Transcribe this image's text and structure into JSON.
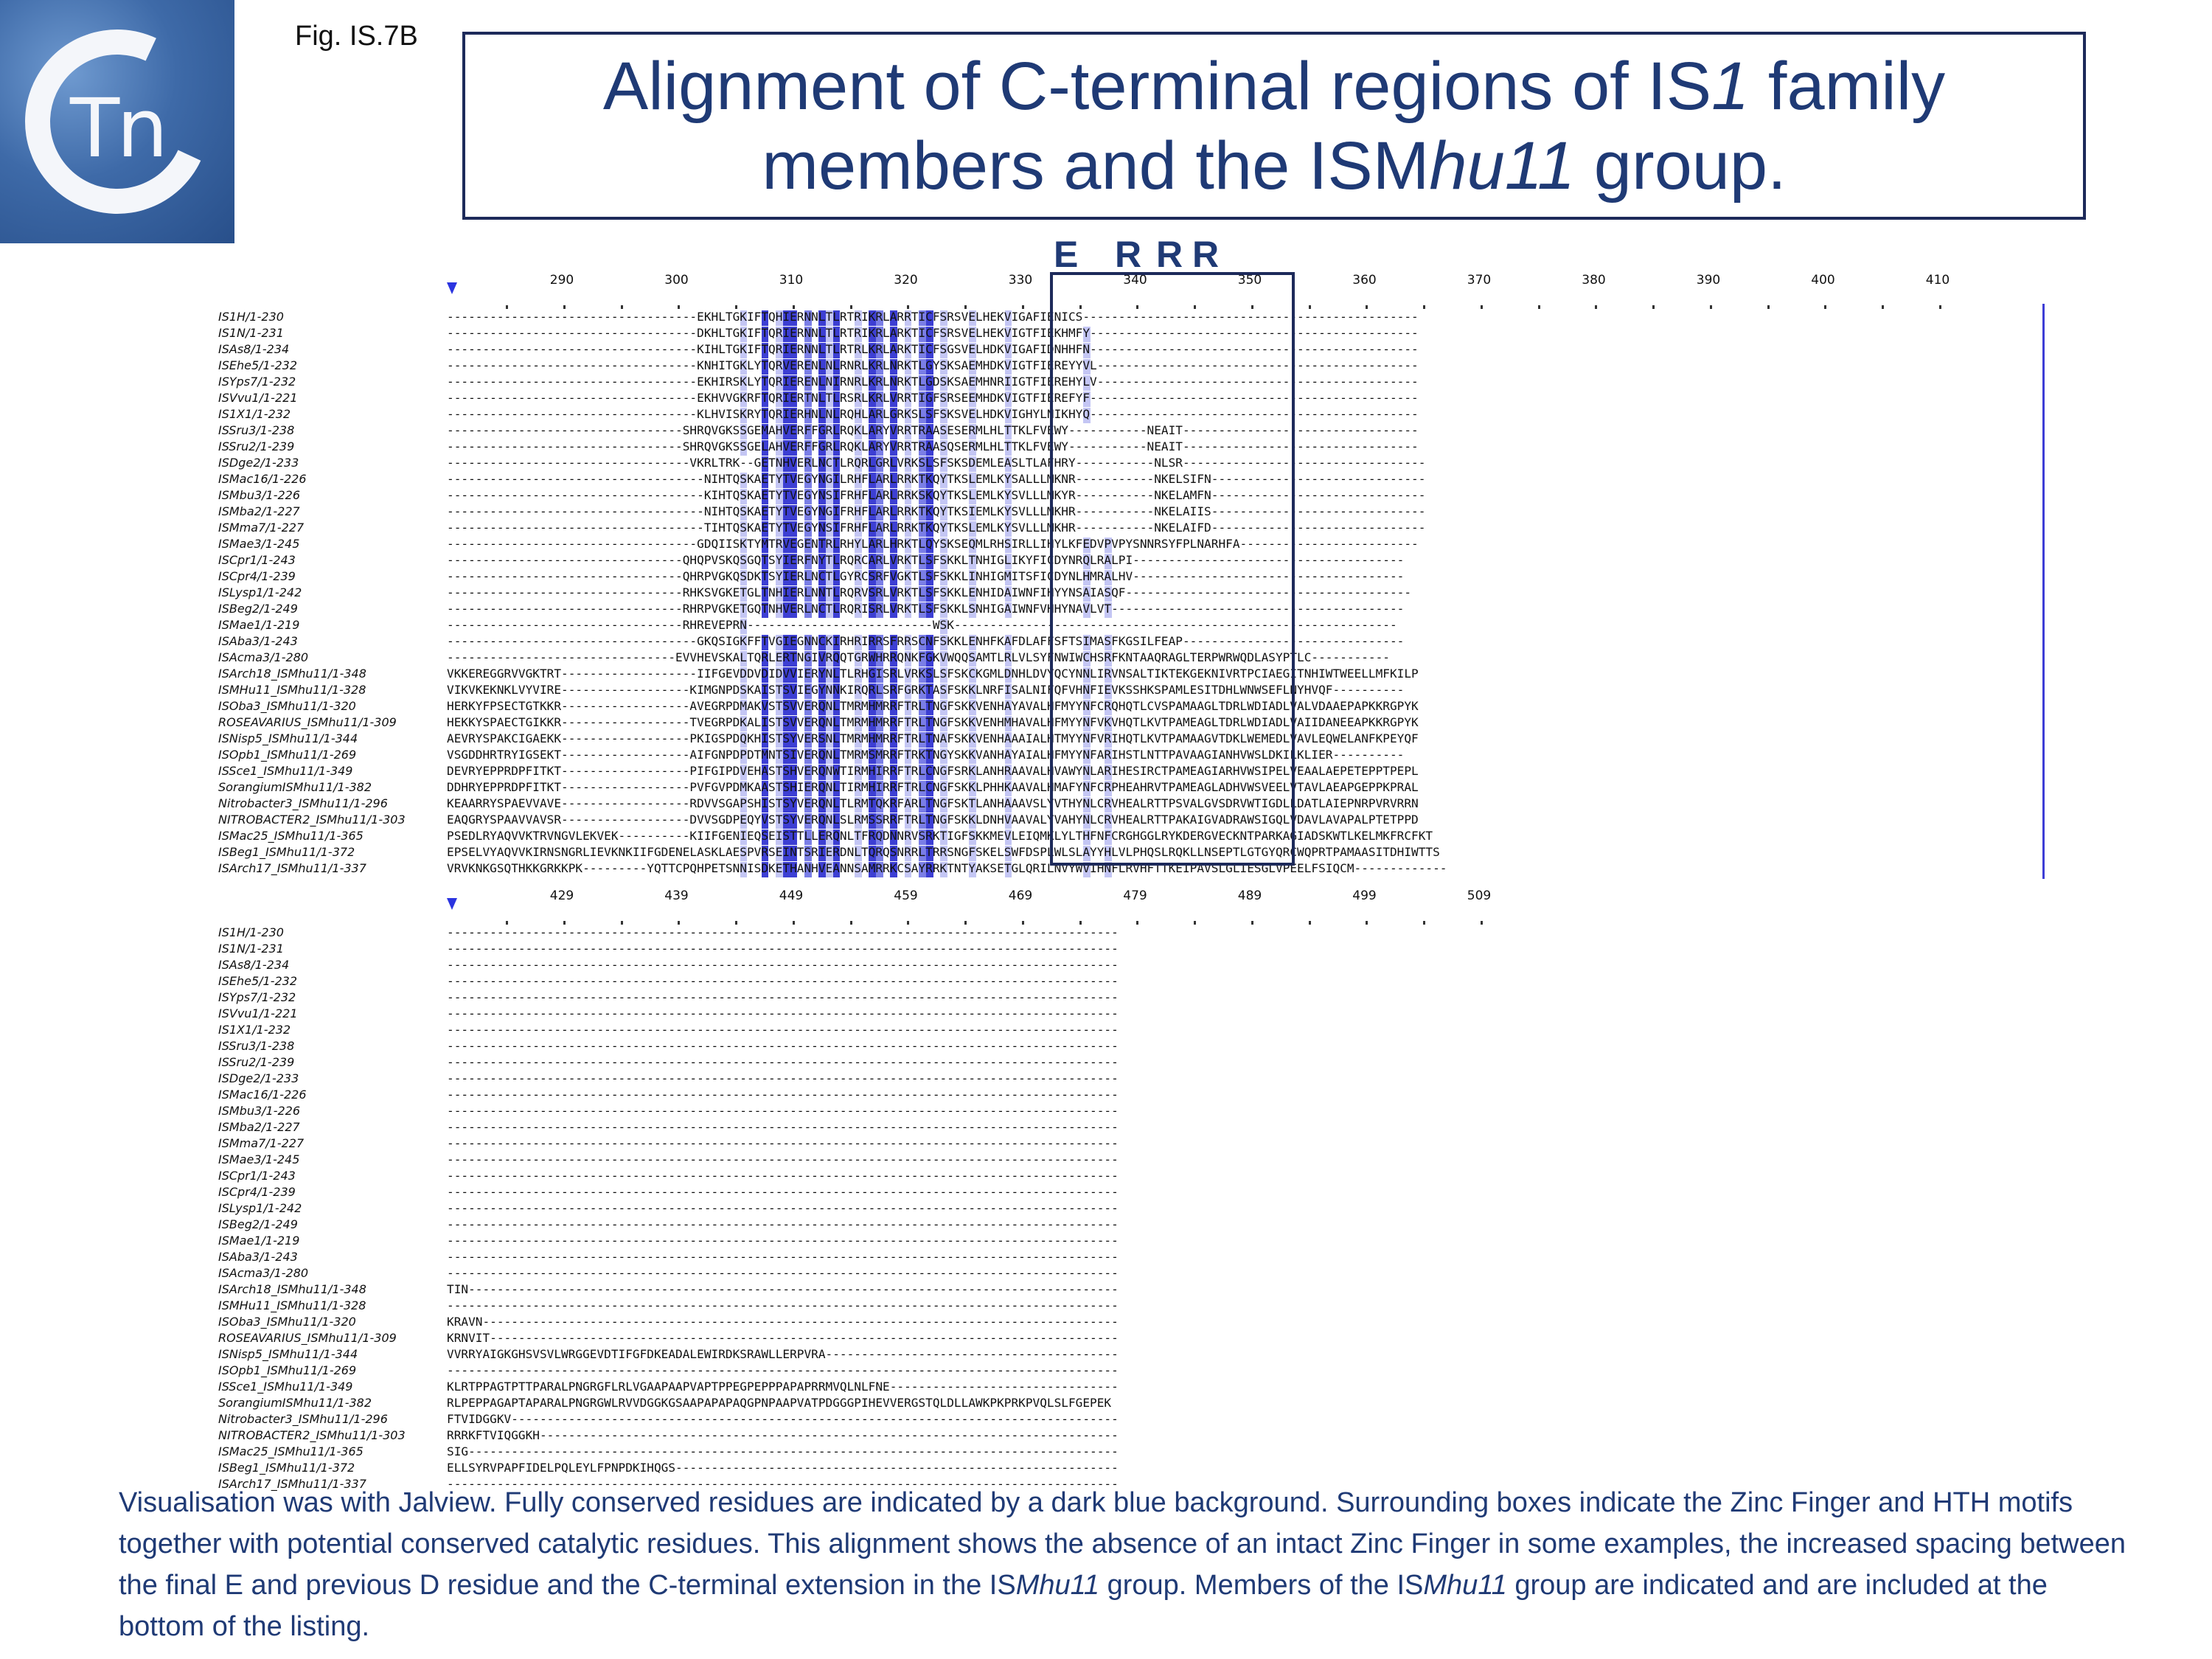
{
  "figure_label": "Fig. IS.7B",
  "logo": {
    "text": "Tn",
    "icon": "ctn-logo-icon"
  },
  "title": {
    "line1_a": "Alignment of C-terminal regions of IS",
    "line1_italic": "1",
    "line1_b": " family",
    "line2_a": "members and the ISM",
    "line2_italic": "hu11",
    "line2_b": " group."
  },
  "motif_labels": [
    "E",
    "R",
    "R",
    "R"
  ],
  "block1": {
    "ruler": [
      "290",
      "300",
      "310",
      "320",
      "330",
      "340",
      "350",
      "360",
      "370",
      "380",
      "390",
      "400",
      "410"
    ],
    "names": [
      "IS1H/1-230",
      "IS1N/1-231",
      "ISAs8/1-234",
      "ISEhe5/1-232",
      "ISYps7/1-232",
      "ISVvu1/1-221",
      "IS1X1/1-232",
      "ISSru3/1-238",
      "ISSru2/1-239",
      "ISDge2/1-233",
      "ISMac16/1-226",
      "ISMbu3/1-226",
      "ISMba2/1-227",
      "ISMma7/1-227",
      "ISMae3/1-245",
      "ISCpr1/1-243",
      "ISCpr4/1-239",
      "ISLysp1/1-242",
      "ISBeg2/1-249",
      "ISMae1/1-219",
      "ISAba3/1-243",
      "ISAcma3/1-280",
      "ISArch18_ISMhu11/1-348",
      "ISMHu11_ISMhu11/1-328",
      "ISOba3_ISMhu11/1-320",
      "ROSEAVARIUS_ISMhu11/1-309",
      "ISNisp5_ISMhu11/1-344",
      "ISOpb1_ISMhu11/1-269",
      "ISSce1_ISMhu11/1-349",
      "SorangiumISMhu11/1-382",
      "Nitrobacter3_ISMhu11/1-296",
      "NITROBACTER2_ISMhu11/1-303",
      "ISMac25_ISMhu11/1-365",
      "ISBeg1_ISMhu11/1-372",
      "ISArch17_ISMhu11/1-337"
    ],
    "seqs": [
      "-----------------------------------EKHLTGKIFTQHIERNNLTLRTRIKRLARRTICFSRSVELHEKVIGAFIENICS-----------------------------------------------",
      "-----------------------------------DKHLTGKIFTQRIERNNLTLRTRIKRLARKTICFSRSVELHEKVIGTFIEKHMFY----------------------------------------------",
      "-----------------------------------KIHLTGKIFTQRIERNNLTLRTRLKRLARKTICFSGSVELHDKVIGAFIDNHHFN----------------------------------------------",
      "-----------------------------------KNHITGKLYTQRVERENLNLRNRLKRLNRKTLGYSKSAEMHDKVIGTFIEREYYVL---------------------------------------------",
      "-----------------------------------EKHIRSKLYTQRIERENLNIRNRLKRLNRKTLGDSKSAEMHNRIIGTFIEREHYLV---------------------------------------------",
      "-----------------------------------EKHVVGKRFTQRIERTNLTLRSRLKRLVRRTIGFSRSEEMHDKVIGTFIEREFYF----------------------------------------------",
      "-----------------------------------KLHVISKRYTQRIERHNLNLRQHLARLGRKSLSFSKSVELHDKVIGHYLNIKHYQ----------------------------------------------",
      "---------------------------------SHRQVGKSSGEMAHVERFFGRLRQKLARYVRRTRAASESERMLHLTTKLFVEWY-----------NEAIT---------------------------------",
      "---------------------------------SHRQVGKSSGELAHVERFFGRLRQKLARYVRRTRAASQSERMLHLTTKLFVEWY-----------NEAIT---------------------------------",
      "----------------------------------VKRLTRK--GETNHVERLNCTLRQRLGRLVRKSLSFSKSDEMLEASLTLAFHRY-----------NLSR----------------------------------",
      "------------------------------------NIHTQSKAETYTVEGYNGILRHFLARLRRKTKQYTKSLEMLKYSALLLMKNR-----------NKELSIFN------------------------------",
      "------------------------------------KIHTQSKAETYTVEGYNSIFRHFLARLRRKSKQYTKSLEMLKYSVLLLMKYR-----------NKELAMFN------------------------------",
      "------------------------------------NIHTQSKAETYTVEGYNGIFRHFLARLRRKTKQYTKSIEMLKYSVLLLMKHR-----------NKELAIIS------------------------------",
      "------------------------------------TIHTQSKAETYTVEGYNSIFRHFLARLRRKTKQYTKSLEMLKYSVLLLMKHR-----------NKELAIFD------------------------------",
      "-----------------------------------GDQIISKTYMTRVEGENTRLRHYLARLHRKTLQYSKSEQMLRHSIRLLIHYLKFEDVPVPYSNNRSYFPLNARHFA-------------------------",
      "---------------------------------QHQPVSKQSGQTSYIERFNYTLRQRCARLVRKTLSFSKKLTNHIGLIKYFICDYNRQLRALPI--------------------------------------",
      "---------------------------------QHRPVGKQSDKTSYIERLNCTLGYRCSRFVGKTLSFSKKLINHIGMITSFICDYNLHMRALHV--------------------------------------",
      "---------------------------------RHKSVGKETGLTNHIERLNNTLRQRVSRLVRKTLSFSKKLENHIDAIWNFIHYYNSAIASQF----------------------------------------",
      "---------------------------------RHRPVGKETGQTNHVERLNCTLRQRISRLVRKTLSFSKKLSNHIGAIWNFVHHYNAVLVT-----------------------------------------",
      "---------------------------------RHREVEPRN--------------------------WSK--------------------------------------------------------------",
      "-----------------------------------GKQSIGKFFTVGIEGNNCKIRHRIRRSFRRSCNFSKKLENHFKAFDLAFFSFTSIMASFKGSILFEAP-------------------------------",
      "--------------------------------EVVHEVSKALTQRLERTNGIVRQQTGRWHRRQNKFGKVWQQSAMTLRLVLSYFNWIWCHSRFKNTAAQRAGLTERPWRWQDLASYPTLC-----------",
      "VKKEREGGRVVGKTRT-------------------IIFGEVDDVDIDVVIERYNLTLRHGISRLVRKSLSFSKCKGMLDNHLDVYQCYNNLIRVNSALTIKTEKGEKNIVRTPCIAEGITNHIWTWEELLMFKILP",
      "VIKVKEKNKLVYVIRE------------------KIMGNPDSKAISTSVIEGYNNKIRQRLSRFGRKTASFSKKLNRFISALNIFQFVHNFIEVKSSHKSPAMLESITDHLWNWSEFLNYHVQF----------",
      "HERKYFPSECTGTKKR------------------AVEGRPDMAKVSTSVVERQNLTMRMHMRRFTRLTNGFSKKVENHAYAVALHFMYYNFCRQHQTLCVSPAMAAGLTDRLWDIADLVALVDAAEPAPKKRGPYK",
      "HEKKYSPAECTGIKKR------------------TVEGRPDKALISTSVVERQNLTMRMHMRRFTRLTNGFSKKVENHMHAVALHFMYYNFVKVHQTLKVTPAMEAGLTDRLWDIADLVAIIDANEEAPKKRGPYK",
      "AEVRYSPAKCIGAEKK------------------PKIGSPDQKHISTSYVERSNLTMRMHMRRFTRLTNAFSKKVENHAAAIALHTMYYNFVRIHQTLKVTPAMAAGVTDKLWEMEDLVAVLEQWELANFKPEYQF",
      "VSGDDHRTRYIGSEKT------------------AIFGNPDPDTMNTSIVERQNLTMRMSMRRFTRKTNGYSKKVANHAYAIALHFMYYNFARIHSTLNTTPAVAAGIANHVWSLDKILKLIER----------",
      "DEVRYEPPRDPFITKT------------------PIFGIPDVEHASTSHVERQNWTIRMHIRRFTRLCNGFSRKLANHRAAVALHVAWYNLARIHESIRCTPAMEAGIARHVWSIPELVEAALAEPETEPPTPEPL",
      "DDHRYEPPRDPFITKT------------------PVFGVPDMKAASTSHIERQNLTIRMHIRRFTRLCNGFSKKLPHHKAAVALHMAFYNFCRPHEAHRVTPAMEAGLADHVWSVEELVTAVLAEAPGEPPKPRAL",
      "KEAARRYSPAEVVAVE------------------RDVVSGAPSHISTSYVERQNLTLRMTQKRFARLTNGFSKTLANHAAAVSLYVTHYNLCRVHEALRTTPSVALGVSDRVWTIGDLLDATLAIEPNRPVRVRRN",
      "EAQGRYSPAAVVAVSR------------------DVVSGDPEQYVSTSYVERQNLSLRMSSRRFTRLTNGFSKKLDNHVAAVALYVAHYNLCRVHEALRTTPAKAIGVADRAWSIGQLVDAVLAVAPALPTETPPD",
      "PSEDLRYAQVVKTRVNGVLEKVEK----------KIIFGENIEQSEISTTLLERQNLTFRQDNNRVSRKTIGFSKKMEVLEIQMKLYLTHFNFCRGHGGLRYKDERGVECKNTPARKAGIADSKWTLKELMKFRCFKT",
      "EPSELVYAQVVKIRNSNGRLIEVKNKIIFGDENELASKLAESPVRSEINTSRIERDNLTQRQSNRRLTRRSNGFSKELSWFDSPLWLSLAYYHLVLPHQSLRQKLLNSEPTLGTGYQRCWQPRTPAMAASITDHIWTTS",
      "VRVKNKGSQTHKKGRKKPK---------YQTTCPQHPETSNNISDKETHANHVEANNSAMRRKCSAYRRKTNTYAKSETGLQRILNVYWVIHNFLRVHFTTKEIPAVSLGLIESGLVPEELFSIQCM-------------"
    ]
  },
  "block2": {
    "ruler": [
      "429",
      "439",
      "449",
      "459",
      "469",
      "479",
      "489",
      "499",
      "509"
    ],
    "names": [
      "IS1H/1-230",
      "IS1N/1-231",
      "ISAs8/1-234",
      "ISEhe5/1-232",
      "ISYps7/1-232",
      "ISVvu1/1-221",
      "IS1X1/1-232",
      "ISSru3/1-238",
      "ISSru2/1-239",
      "ISDge2/1-233",
      "ISMac16/1-226",
      "ISMbu3/1-226",
      "ISMba2/1-227",
      "ISMma7/1-227",
      "ISMae3/1-245",
      "ISCpr1/1-243",
      "ISCpr4/1-239",
      "ISLysp1/1-242",
      "ISBeg2/1-249",
      "ISMae1/1-219",
      "ISAba3/1-243",
      "ISAcma3/1-280",
      "ISArch18_ISMhu11/1-348",
      "ISMHu11_ISMhu11/1-328",
      "ISOba3_ISMhu11/1-320",
      "ROSEAVARIUS_ISMhu11/1-309",
      "ISNisp5_ISMhu11/1-344",
      "ISOpb1_ISMhu11/1-269",
      "ISSce1_ISMhu11/1-349",
      "SorangiumISMhu11/1-382",
      "Nitrobacter3_ISMhu11/1-296",
      "NITROBACTER2_ISMhu11/1-303",
      "ISMac25_ISMhu11/1-365",
      "ISBeg1_ISMhu11/1-372",
      "ISArch17_ISMhu11/1-337"
    ],
    "seqs": [
      "----------------------------------------------------------------------------------------------",
      "----------------------------------------------------------------------------------------------",
      "----------------------------------------------------------------------------------------------",
      "----------------------------------------------------------------------------------------------",
      "----------------------------------------------------------------------------------------------",
      "----------------------------------------------------------------------------------------------",
      "----------------------------------------------------------------------------------------------",
      "----------------------------------------------------------------------------------------------",
      "----------------------------------------------------------------------------------------------",
      "----------------------------------------------------------------------------------------------",
      "----------------------------------------------------------------------------------------------",
      "----------------------------------------------------------------------------------------------",
      "----------------------------------------------------------------------------------------------",
      "----------------------------------------------------------------------------------------------",
      "----------------------------------------------------------------------------------------------",
      "----------------------------------------------------------------------------------------------",
      "----------------------------------------------------------------------------------------------",
      "----------------------------------------------------------------------------------------------",
      "----------------------------------------------------------------------------------------------",
      "----------------------------------------------------------------------------------------------",
      "----------------------------------------------------------------------------------------------",
      "----------------------------------------------------------------------------------------------",
      "TIN-------------------------------------------------------------------------------------------",
      "----------------------------------------------------------------------------------------------",
      "KRAVN-----------------------------------------------------------------------------------------",
      "KRNVIT----------------------------------------------------------------------------------------",
      "VVRRYAIGKGHSVSVLWRGGEVDTIFGFDKEADALEWIRDKSRAWLLERPVRA-----------------------------------------",
      "----------------------------------------------------------------------------------------------",
      "KLRTPPAGTPTTPARALPNGRGFLRLVGAAPAAPVAPTPPEGPEPPPAPAPRRMVQLNLFNE--------------------------------",
      "RLPEPPAGAPTAPARALPNGRGWLRVVDGGKGSAAPAPAPAQGPNPAAPVATPDGGGPIHEVVERGSTQLDLLAWKPKPRKPVQLSLFGEPEK",
      "FTVIDGGKV-------------------------------------------------------------------------------------",
      "RRRKFTVIQGGKH---------------------------------------------------------------------------------",
      "SIG-------------------------------------------------------------------------------------------",
      "ELLSYRVPAPFIDELPQLEYLFPNPDKIHQGS--------------------------------------------------------------",
      "----------------------------------------------------------------------------------------------"
    ]
  },
  "colors": {
    "title": "#1f3a75",
    "conserved_dark": "#3d3fd3",
    "conserved_mid": "#7a7ee6",
    "conserved_light": "#c4c6f4",
    "box": "#1d2a5a"
  },
  "caption": {
    "part1": "Visualisation was with Jalview. Fully conserved residues are indicated by a dark blue background. Surrounding boxes indicate the Zinc Finger and HTH motifs together with potential conserved catalytic residues. This alignment shows the absence of an intact Zinc Finger in some examples, the increased spacing between the final E and previous D residue and the C-terminal extension in the IS",
    "italic1": "Mhu11",
    "part2": " group. Members of the IS",
    "italic2": "Mhu11",
    "part3": " group are indicated and are included at the bottom of the listing."
  }
}
